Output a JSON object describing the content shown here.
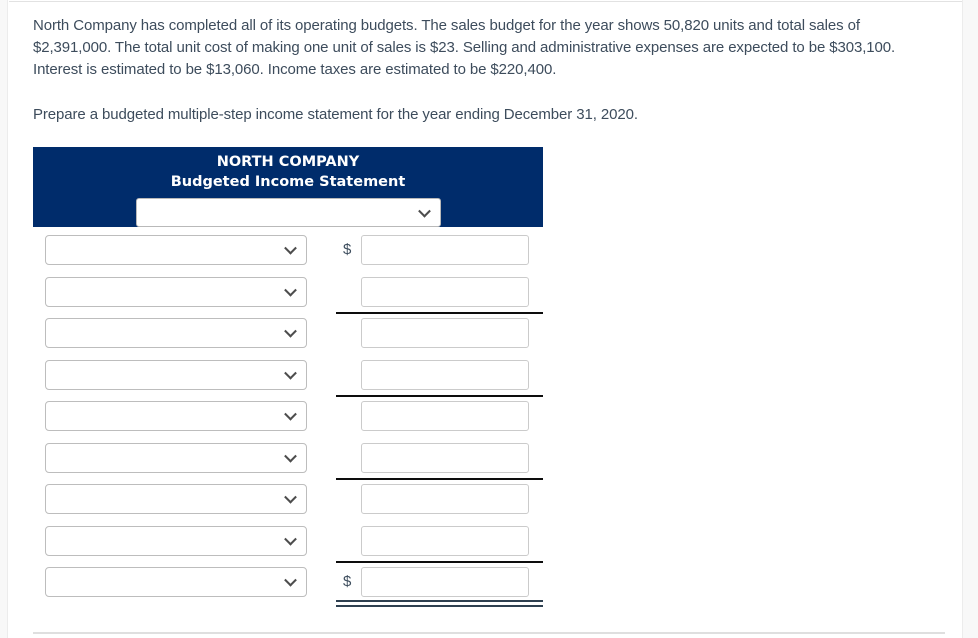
{
  "problem": {
    "lines": [
      "North Company has completed all of its operating budgets. The sales budget for the year shows 50,820 units and total sales of",
      "$2,391,000. The total unit cost of making one unit of sales is $23. Selling and administrative expenses are expected to be $303,100.",
      "Interest is estimated to be $13,060. Income taxes are estimated to be $220,400."
    ],
    "instruction": "Prepare a budgeted multiple-step income statement for the year ending December 31, 2020."
  },
  "statement": {
    "company": "NORTH COMPANY",
    "title": "Budgeted Income Statement",
    "header_bg": "#002c6b",
    "header_text_color": "#ffffff",
    "period_select_value": "",
    "dollar_symbol": "$",
    "rows": [
      {
        "select_value": "",
        "amount_value": "",
        "dollar": true,
        "rule": "none"
      },
      {
        "select_value": "",
        "amount_value": "",
        "dollar": false,
        "rule": "single"
      },
      {
        "select_value": "",
        "amount_value": "",
        "dollar": false,
        "rule": "none"
      },
      {
        "select_value": "",
        "amount_value": "",
        "dollar": false,
        "rule": "single"
      },
      {
        "select_value": "",
        "amount_value": "",
        "dollar": false,
        "rule": "none"
      },
      {
        "select_value": "",
        "amount_value": "",
        "dollar": false,
        "rule": "single"
      },
      {
        "select_value": "",
        "amount_value": "",
        "dollar": false,
        "rule": "none"
      },
      {
        "select_value": "",
        "amount_value": "",
        "dollar": false,
        "rule": "single"
      },
      {
        "select_value": "",
        "amount_value": "",
        "dollar": true,
        "rule": "double"
      }
    ]
  }
}
